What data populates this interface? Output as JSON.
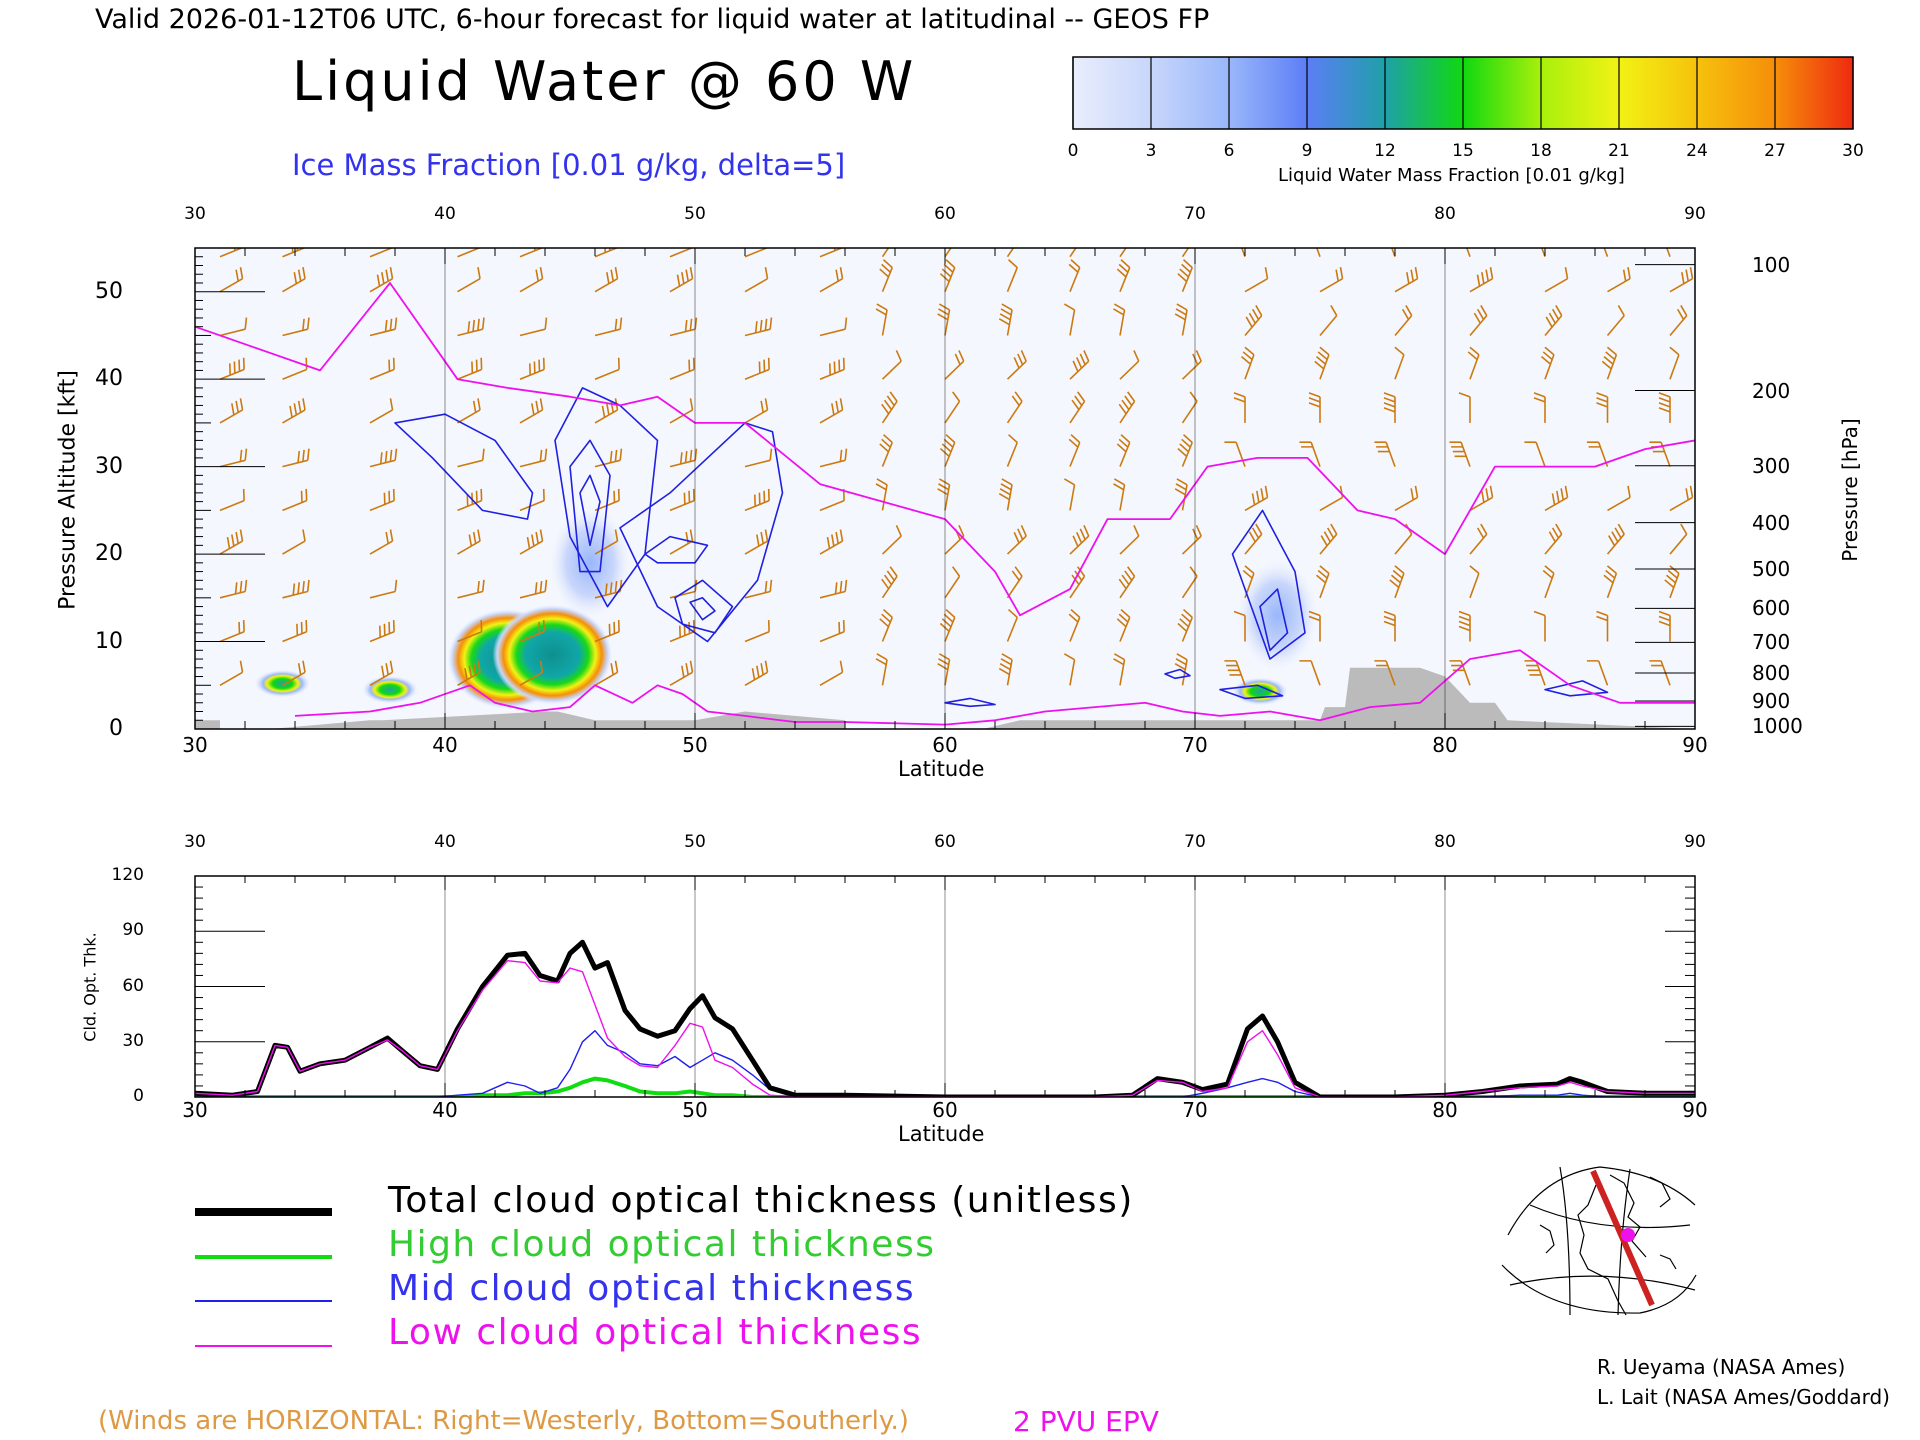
{
  "header": {
    "valid_line": "Valid 2026-01-12T06 UTC, 6-hour forecast for liquid water at latitudinal -- GEOS FP",
    "title": "Liquid Water @ 60 W",
    "subtitle": "Ice Mass Fraction [0.01 g/kg, delta=5]"
  },
  "colorbar": {
    "ticks": [
      "0",
      "3",
      "6",
      "9",
      "12",
      "15",
      "18",
      "21",
      "24",
      "27",
      "30"
    ],
    "label": "Liquid Water Mass Fraction [0.01 g/kg]",
    "colors": [
      "#e9eefc",
      "#c8d6fb",
      "#9ab7fa",
      "#5c7ef7",
      "#1fa0a8",
      "#10d810",
      "#a8f00c",
      "#f2f214",
      "#f6c20c",
      "#f58e0a",
      "#ef2a10"
    ]
  },
  "colors": {
    "ice_contour": "#2020e0",
    "epv_contour": "#ee11ee",
    "wind_barb": "#cc7a10",
    "terrain": "#bbbbbb",
    "total_line": "#000000",
    "high_line": "#10dd10",
    "mid_line": "#2020ee",
    "low_line": "#ee11ee"
  },
  "chart_data": [
    {
      "type": "heatmap",
      "title": "Liquid Water @ 60 W",
      "xlabel": "Latitude",
      "ylabel": "Pressure Altitude [kft]",
      "y2label": "Pressure [hPa]",
      "xlim": [
        30,
        90
      ],
      "ylim": [
        0,
        55
      ],
      "x_ticks": [
        "30",
        "40",
        "50",
        "60",
        "70",
        "80",
        "90"
      ],
      "y_ticks": [
        "0",
        "10",
        "20",
        "30",
        "40",
        "50"
      ],
      "pressure_ticks": [
        "100",
        "200",
        "300",
        "400",
        "500",
        "600",
        "700",
        "800",
        "900",
        "1000"
      ],
      "pressure_levels_kft": [
        53.1,
        38.7,
        30.1,
        23.6,
        18.3,
        13.8,
        9.9,
        6.4,
        3.2,
        0.3
      ],
      "liquid_cells": [
        {
          "lat": 42.5,
          "kft": 8.0,
          "value": 30
        },
        {
          "lat": 44.3,
          "kft": 8.5,
          "value": 28
        },
        {
          "lat": 33.5,
          "kft": 5.2,
          "value": 18
        },
        {
          "lat": 37.8,
          "kft": 4.5,
          "value": 20
        },
        {
          "lat": 72.6,
          "kft": 4.3,
          "value": 14
        },
        {
          "lat": 73.3,
          "kft": 13.0,
          "value": 5
        },
        {
          "lat": 45.8,
          "kft": 19.0,
          "value": 5
        }
      ],
      "epv_2pvu_line": {
        "lat": [
          30,
          32,
          35,
          37.8,
          40.5,
          42.5,
          45,
          47,
          48.5,
          50,
          52,
          55,
          57.5,
          60,
          62,
          63,
          65,
          66.5,
          69,
          70.5,
          72.5,
          74.5,
          76.5,
          78,
          80,
          82,
          84,
          86,
          88,
          90
        ],
        "kft": [
          46,
          44,
          41,
          51,
          40,
          39,
          38,
          37,
          38,
          35,
          35,
          28,
          26,
          24,
          18,
          13,
          16,
          24,
          24,
          30,
          31,
          31,
          25,
          24,
          20,
          30,
          30,
          30,
          32,
          33
        ]
      },
      "epv_2pvu_low_line": {
        "lat": [
          34,
          37,
          39,
          41,
          42,
          43.5,
          45,
          46,
          47.5,
          48.5,
          49.5,
          50.5,
          52,
          54,
          56,
          60,
          62,
          64,
          66,
          68,
          69.5,
          71,
          73,
          75,
          77,
          79,
          81,
          83,
          85,
          87,
          90
        ],
        "kft": [
          1.5,
          2.0,
          3.0,
          5.0,
          3.0,
          2.0,
          2.5,
          5.0,
          3.0,
          5.0,
          4.0,
          2.0,
          1.5,
          0.8,
          0.8,
          0.5,
          1.0,
          2.0,
          2.5,
          3.0,
          2.0,
          1.5,
          2.0,
          1.0,
          2.5,
          3.0,
          8.0,
          9.0,
          5.0,
          3.0,
          3.0
        ]
      },
      "ice_contours": [
        {
          "lat": [
            38,
            40,
            42,
            43.5,
            43.3,
            41.5,
            39.5,
            38
          ],
          "kft": [
            35,
            36,
            33,
            27,
            24,
            25,
            31,
            35
          ]
        },
        {
          "lat": [
            44.4,
            45.5,
            47,
            48.5,
            48,
            46.5,
            45,
            44.4
          ],
          "kft": [
            33,
            39,
            37,
            33,
            20,
            14,
            22,
            33
          ]
        },
        {
          "lat": [
            45,
            45.8,
            46.6,
            46.2,
            45.4,
            45
          ],
          "kft": [
            30,
            33,
            29,
            18,
            18,
            30
          ]
        },
        {
          "lat": [
            45.4,
            45.8,
            46.2,
            45.8,
            45.4
          ],
          "kft": [
            27,
            29,
            26,
            21,
            27
          ]
        },
        {
          "lat": [
            47,
            49,
            52,
            53.1,
            53.5,
            52.5,
            50.5,
            48.5,
            47
          ],
          "kft": [
            23,
            27,
            35,
            34,
            27,
            17,
            10,
            14,
            23
          ]
        },
        {
          "lat": [
            49.2,
            50.3,
            51.5,
            50.8,
            49.5,
            49.2
          ],
          "kft": [
            15,
            17,
            14,
            11,
            12,
            15
          ]
        },
        {
          "lat": [
            49.8,
            50.3,
            50.8,
            50.3,
            49.8
          ],
          "kft": [
            14.5,
            15,
            13.5,
            12.5,
            14.5
          ]
        },
        {
          "lat": [
            48,
            49,
            50.5,
            50,
            48.5,
            48
          ],
          "kft": [
            20,
            22,
            21,
            19,
            19,
            20
          ]
        },
        {
          "lat": [
            71.5,
            72.7,
            74,
            74.4,
            73,
            71.5
          ],
          "kft": [
            20,
            25,
            18,
            11,
            8,
            20
          ]
        },
        {
          "lat": [
            72.6,
            73.3,
            73.7,
            73,
            72.6
          ],
          "kft": [
            14,
            16,
            11,
            9,
            14
          ]
        },
        {
          "lat": [
            71,
            72.5,
            73.5,
            72,
            71
          ],
          "kft": [
            4.5,
            5.0,
            3.8,
            3.5,
            4.5
          ]
        },
        {
          "lat": [
            68.8,
            69.4,
            69.8,
            69.2,
            68.8
          ],
          "kft": [
            6.3,
            6.8,
            6.1,
            5.8,
            6.3
          ]
        },
        {
          "lat": [
            60,
            61,
            62,
            61,
            60
          ],
          "kft": [
            3.0,
            3.5,
            2.8,
            2.6,
            3.0
          ]
        },
        {
          "lat": [
            84,
            85.5,
            86.5,
            85,
            84
          ],
          "kft": [
            4.5,
            5.5,
            4.2,
            3.8,
            4.5
          ]
        }
      ],
      "terrain": {
        "lat": [
          30,
          31,
          31,
          33,
          37,
          37.5,
          44,
          44.5,
          46,
          50,
          52,
          56,
          56,
          61.5,
          63,
          75,
          75.2,
          76,
          76.2,
          79,
          80,
          81,
          82,
          82.5,
          90
        ],
        "kft": [
          1,
          1,
          0,
          0,
          1,
          1,
          2,
          2,
          1,
          1,
          2,
          1,
          0,
          0,
          1,
          1,
          2.5,
          2.5,
          7,
          7,
          6,
          3,
          3,
          1,
          0
        ]
      },
      "wind_barb_columns_lat": [
        31,
        33.5,
        37,
        40.5,
        43,
        46,
        49,
        52,
        55,
        57.5,
        60,
        62.5,
        65,
        67,
        69.5,
        72,
        75,
        78,
        81,
        84,
        86.5,
        89
      ],
      "wind_barb_levels_kft": [
        5,
        10,
        15,
        20,
        25,
        30,
        35,
        40,
        45,
        50,
        54
      ]
    },
    {
      "type": "line",
      "xlabel": "Latitude",
      "ylabel": "Cld. Opt. Thk.",
      "xlim": [
        30,
        90
      ],
      "ylim": [
        0,
        120
      ],
      "x_ticks": [
        "30",
        "40",
        "50",
        "60",
        "70",
        "80",
        "90"
      ],
      "y_ticks": [
        "0",
        "30",
        "60",
        "90",
        "120"
      ],
      "x": [
        30,
        31.5,
        32.5,
        33.2,
        33.7,
        34.2,
        35,
        36,
        37,
        37.7,
        38.3,
        39,
        39.7,
        40.5,
        41.5,
        42.5,
        43.2,
        43.8,
        44.5,
        45,
        45.5,
        46,
        46.5,
        47.2,
        47.8,
        48.5,
        49.2,
        49.8,
        50.3,
        50.8,
        51.5,
        52.3,
        53,
        54,
        56,
        60,
        62,
        66,
        67.5,
        68.5,
        69.5,
        70.3,
        71.3,
        72.1,
        72.7,
        73.3,
        74,
        75,
        78,
        80,
        81.5,
        83,
        84.5,
        85,
        85.5,
        86.5,
        88,
        90
      ],
      "series": [
        {
          "name": "Total cloud optical thickness (unitless)",
          "values": [
            2,
            1,
            3,
            28,
            27,
            14,
            18,
            20,
            27,
            32,
            25,
            17,
            15,
            37,
            60,
            77,
            78,
            66,
            63,
            78,
            84,
            70,
            73,
            47,
            37,
            33,
            36,
            48,
            55,
            43,
            37,
            20,
            5,
            1,
            1,
            0,
            0,
            0,
            1,
            10,
            8,
            4,
            7,
            37,
            44,
            30,
            8,
            0,
            0,
            1,
            3,
            6,
            7,
            10,
            8,
            3,
            2,
            2
          ]
        },
        {
          "name": "High cloud optical thickness",
          "values": [
            0,
            0,
            0,
            0,
            0,
            0,
            0,
            0,
            0,
            0,
            0,
            0,
            0,
            0,
            1,
            1,
            2,
            2,
            3,
            5,
            8,
            10,
            9,
            6,
            3,
            2,
            2,
            3,
            2,
            1,
            1,
            0,
            0,
            0,
            0,
            0,
            0,
            0,
            0,
            0,
            0,
            0,
            0,
            0,
            0,
            0,
            0,
            0,
            0,
            0,
            0,
            0,
            0,
            0,
            0,
            0,
            0,
            0
          ]
        },
        {
          "name": "Mid cloud optical thickness",
          "values": [
            0,
            0,
            0,
            0,
            0,
            0,
            0,
            0,
            0,
            0,
            0,
            0,
            0,
            1,
            2,
            8,
            6,
            2,
            5,
            15,
            30,
            36,
            28,
            24,
            18,
            17,
            22,
            16,
            20,
            24,
            20,
            12,
            4,
            1,
            0,
            0,
            0,
            0,
            0,
            0,
            0,
            2,
            5,
            8,
            10,
            8,
            3,
            0,
            0,
            0,
            0,
            1,
            1,
            2,
            1,
            0,
            0,
            0
          ]
        },
        {
          "name": "Low cloud optical thickness",
          "values": [
            2,
            1,
            3,
            28,
            27,
            14,
            18,
            20,
            27,
            31,
            25,
            17,
            15,
            36,
            58,
            74,
            73,
            63,
            62,
            70,
            68,
            50,
            32,
            22,
            17,
            16,
            28,
            40,
            38,
            20,
            16,
            7,
            1,
            0,
            0,
            0,
            0,
            0,
            1,
            9,
            8,
            3,
            5,
            30,
            36,
            23,
            5,
            0,
            0,
            1,
            3,
            5,
            6,
            8,
            6,
            3,
            2,
            2
          ]
        }
      ]
    }
  ],
  "legend": {
    "total": "Total cloud optical thickness (unitless)",
    "high": "High cloud optical thickness",
    "mid": "Mid cloud optical thickness",
    "low": "Low cloud optical thickness"
  },
  "footer": {
    "winds_note": "(Winds are HORIZONTAL: Right=Westerly, Bottom=Southerly.)",
    "epv_label": "2 PVU EPV",
    "credit_1": "R. Ueyama (NASA Ames)",
    "credit_2": "L. Lait (NASA Ames/Goddard)"
  },
  "inset_map": {
    "icon": "polar-globe-map-icon",
    "track_color": "#cc2222",
    "marker_color": "#ee11ee"
  }
}
